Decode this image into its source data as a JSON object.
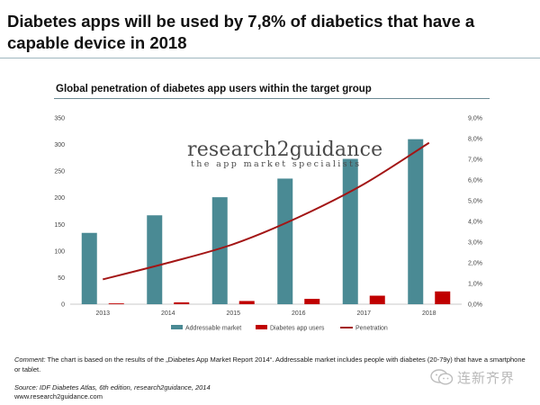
{
  "headline": "Diabetes apps will be used by 7,8% of diabetics that have a capable device in 2018",
  "comment": {
    "lead": "Comment:",
    "text": " The chart is based on the results of the „Diabetes App Market Report 2014“. Addressable market includes people with diabetes (20-79y) that have a smartphone or tablet."
  },
  "source": {
    "line1": "Source: IDF Diabetes Atlas, 6th edition, research2guidance, 2014",
    "line2": "www.research2guidance.com"
  },
  "watermark": {
    "name": "research2guidance",
    "tagline": "the app market specialists"
  },
  "wechat_label": "连新齐界",
  "colors": {
    "addressable": "#4a8a94",
    "app_users": "#c00000",
    "penetration": "#a31515"
  },
  "chart_data": {
    "type": "bar",
    "title": "Global penetration of diabetes app users within the target group",
    "categories": [
      "2013",
      "2014",
      "2015",
      "2016",
      "2017",
      "2018"
    ],
    "series": [
      {
        "name": "Addressable market",
        "type": "bar",
        "axis": "left",
        "values": [
          134,
          167,
          201,
          236,
          273,
          310
        ]
      },
      {
        "name": "Diabetes app users",
        "type": "bar",
        "axis": "left",
        "values": [
          1.5,
          3.5,
          6,
          10,
          16,
          24
        ]
      },
      {
        "name": "Penetration",
        "type": "line",
        "axis": "right",
        "values": [
          1.2,
          2.0,
          2.9,
          4.2,
          5.8,
          7.8
        ]
      }
    ],
    "ylim_left": [
      0,
      350
    ],
    "yticks_left": [
      "0",
      "50",
      "100",
      "150",
      "200",
      "250",
      "300",
      "350"
    ],
    "ylim_right": [
      0,
      9
    ],
    "yticks_right": [
      "0,0%",
      "1,0%",
      "2,0%",
      "3,0%",
      "4,0%",
      "5,0%",
      "6,0%",
      "7,0%",
      "8,0%",
      "9,0%"
    ],
    "legend": "bottom",
    "grid": false
  }
}
